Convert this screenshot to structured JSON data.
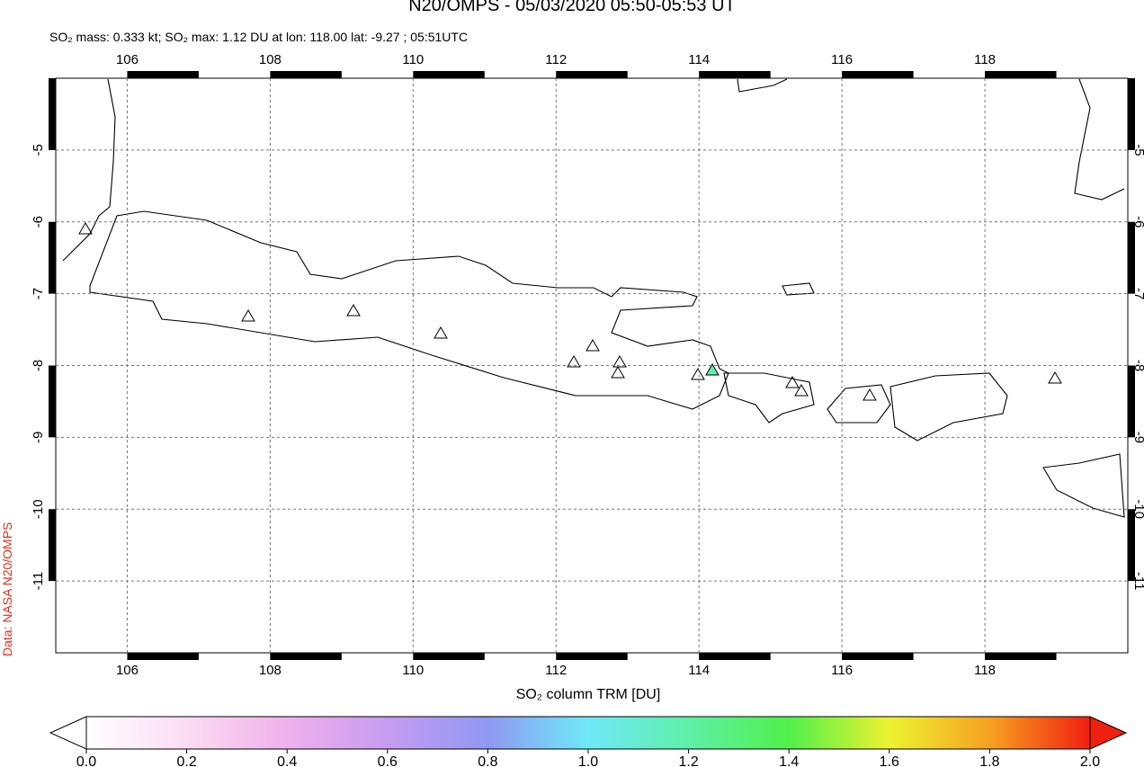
{
  "title": "N20/OMPS - 05/03/2020 05:50-05:53 UT",
  "subtitle": "SO₂ mass: 0.333 kt; SO₂ max: 1.12 DU at lon: 118.00 lat: -9.27 ; 05:51UTC",
  "credit": "Data: NASA N20/OMPS",
  "map": {
    "xlim": [
      105,
      120
    ],
    "ylim": [
      -12,
      -4
    ],
    "xticks": [
      106,
      108,
      110,
      112,
      114,
      116,
      118
    ],
    "yticks": [
      -5,
      -6,
      -7,
      -8,
      -9,
      -10,
      -11
    ],
    "grid": true
  },
  "colorbar": {
    "label": "SO₂ column TRM [DU]",
    "lim": [
      0,
      2
    ],
    "ticks": [
      {
        "value": 0,
        "label": "0.0"
      },
      {
        "value": 0.2,
        "label": "0.2"
      },
      {
        "value": 0.4,
        "label": "0.4"
      },
      {
        "value": 0.6,
        "label": "0.6"
      },
      {
        "value": 0.8,
        "label": "0.8"
      },
      {
        "value": 1,
        "label": "1.0"
      },
      {
        "value": 1.2,
        "label": "1.2"
      },
      {
        "value": 1.4,
        "label": "1.4"
      },
      {
        "value": 1.6,
        "label": "1.6"
      },
      {
        "value": 1.8,
        "label": "1.8"
      },
      {
        "value": 2,
        "label": "2.0"
      }
    ]
  }
}
